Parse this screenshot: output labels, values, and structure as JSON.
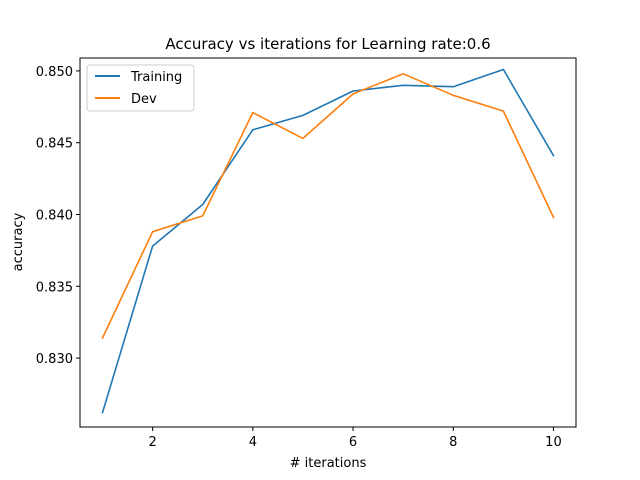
{
  "chart_data": {
    "type": "line",
    "title": "Accuracy vs iterations for Learning rate:0.6",
    "xlabel": "# iterations",
    "ylabel": "accuracy",
    "x": [
      1,
      2,
      3,
      4,
      5,
      6,
      7,
      8,
      9,
      10
    ],
    "xlim": [
      0.55,
      10.45
    ],
    "ylim": [
      0.8252,
      0.8509
    ],
    "xticks": [
      2,
      4,
      6,
      8,
      10
    ],
    "xtick_labels": [
      "2",
      "4",
      "6",
      "8",
      "10"
    ],
    "yticks": [
      0.83,
      0.835,
      0.84,
      0.845,
      0.85
    ],
    "ytick_labels": [
      "0.830",
      "0.835",
      "0.840",
      "0.845",
      "0.850"
    ],
    "grid": false,
    "legend_position": "top-left",
    "series": [
      {
        "name": "Training",
        "color": "#1f77b4",
        "values": [
          0.8262,
          0.8378,
          0.8407,
          0.8459,
          0.8469,
          0.8486,
          0.849,
          0.8489,
          0.8501,
          0.8441
        ]
      },
      {
        "name": "Dev",
        "color": "#ff7f0e",
        "values": [
          0.8314,
          0.8388,
          0.8399,
          0.8471,
          0.8453,
          0.8484,
          0.8498,
          0.8483,
          0.8472,
          0.8398
        ]
      }
    ]
  }
}
